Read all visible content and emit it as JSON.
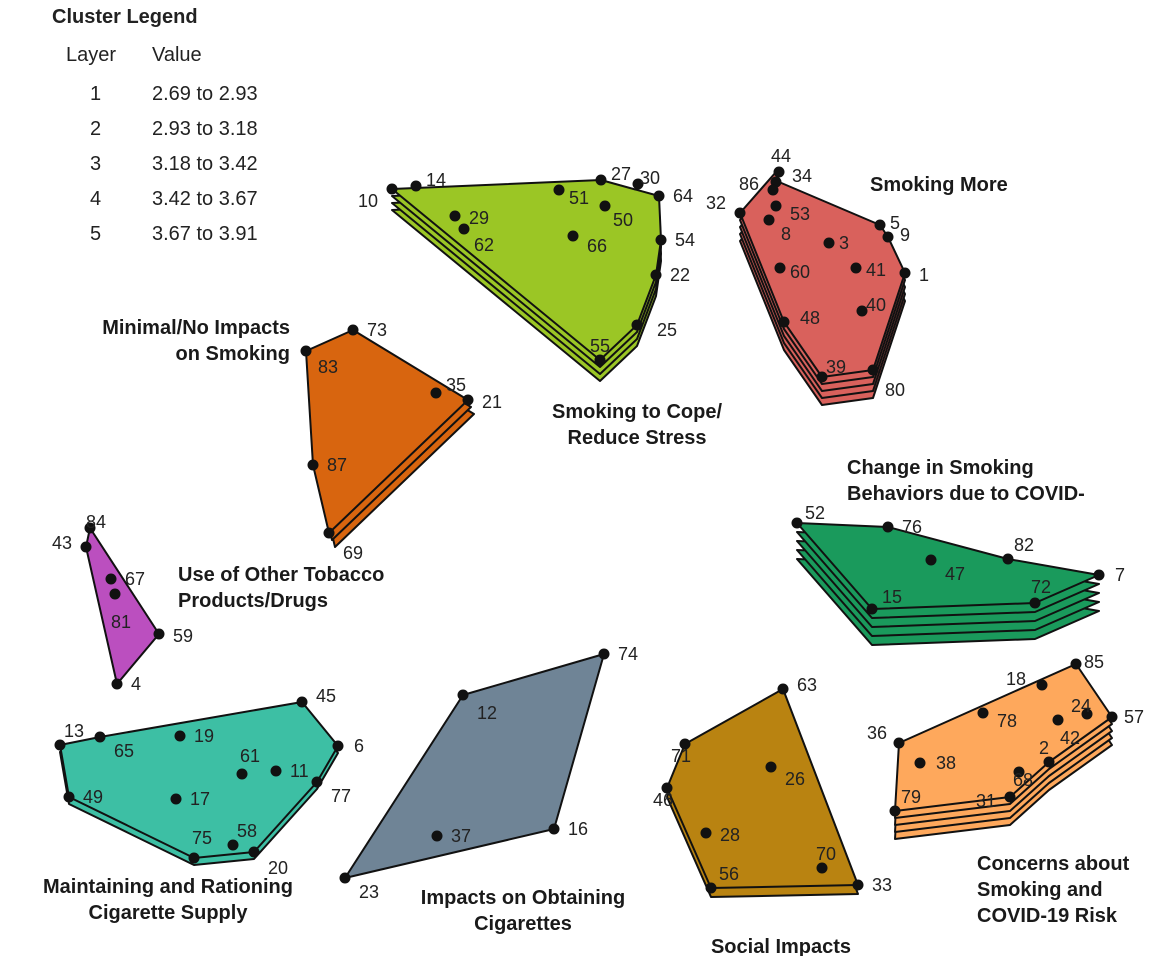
{
  "legend": {
    "title": "Cluster Legend",
    "header_layer": "Layer",
    "header_value": "Value",
    "rows": [
      {
        "layer": "1",
        "value": "2.69 to 2.93"
      },
      {
        "layer": "2",
        "value": "2.93 to 3.18"
      },
      {
        "layer": "3",
        "value": "3.18 to 3.42"
      },
      {
        "layer": "4",
        "value": "3.42 to 3.67"
      },
      {
        "layer": "5",
        "value": "3.67 to 3.91"
      }
    ]
  },
  "clusters": [
    {
      "id": "smoking-to-cope",
      "label_lines": [
        "Smoking to Cope/",
        "Reduce Stress"
      ],
      "color": "#9bc625",
      "layers": 4,
      "points": [
        "10",
        "14",
        "27",
        "30",
        "64",
        "54",
        "22",
        "25",
        "55",
        "51",
        "50",
        "66",
        "29",
        "62"
      ]
    },
    {
      "id": "smoking-more",
      "label_lines": [
        "Smoking More"
      ],
      "color": "#d9615c",
      "layers": 5,
      "points": [
        "44",
        "34",
        "86",
        "32",
        "53",
        "8",
        "5",
        "9",
        "3",
        "1",
        "41",
        "60",
        "40",
        "48",
        "39",
        "80"
      ]
    },
    {
      "id": "minimal-impacts",
      "label_lines": [
        "Minimal/No Impacts",
        "on Smoking"
      ],
      "color": "#d8650f",
      "layers": 3,
      "points": [
        "73",
        "83",
        "35",
        "21",
        "87",
        "69"
      ]
    },
    {
      "id": "change-behaviors",
      "label_lines": [
        "Change in Smoking",
        "Behaviors due to COVID-"
      ],
      "color": "#1a9a5c",
      "layers": 5,
      "points": [
        "52",
        "76",
        "47",
        "82",
        "7",
        "15",
        "72"
      ]
    },
    {
      "id": "other-tobacco",
      "label_lines": [
        "Use of Other Tobacco",
        "Products/Drugs"
      ],
      "color": "#bb4fbf",
      "layers": 1,
      "points": [
        "84",
        "43",
        "67",
        "81",
        "59",
        "4"
      ]
    },
    {
      "id": "maintaining-supply",
      "label_lines": [
        "Maintaining and Rationing",
        "Cigarette Supply"
      ],
      "color": "#3dbfa4",
      "layers": 2,
      "points": [
        "13",
        "65",
        "19",
        "45",
        "6",
        "61",
        "11",
        "77",
        "49",
        "17",
        "75",
        "58",
        "20"
      ]
    },
    {
      "id": "obtaining",
      "label_lines": [
        "Impacts on Obtaining",
        "Cigarettes"
      ],
      "color": "#6f8496",
      "layers": 1,
      "points": [
        "74",
        "12",
        "37",
        "16",
        "23"
      ]
    },
    {
      "id": "social-impacts",
      "label_lines": [
        "Social Impacts"
      ],
      "color": "#b98311",
      "layers": 2,
      "points": [
        "63",
        "71",
        "26",
        "46",
        "28",
        "70",
        "56",
        "33"
      ]
    },
    {
      "id": "concerns-covid",
      "label_lines": [
        "Concerns about",
        "Smoking and",
        "COVID-19 Risk"
      ],
      "color": "#fea85c",
      "layers": 5,
      "points": [
        "85",
        "18",
        "24",
        "57",
        "36",
        "78",
        "42",
        "38",
        "2",
        "68",
        "31",
        "79"
      ]
    }
  ]
}
